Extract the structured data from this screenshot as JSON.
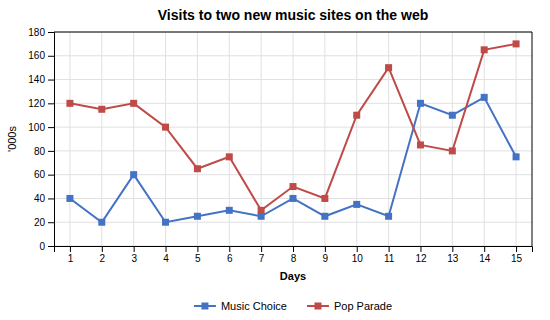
{
  "chart_data": {
    "type": "line",
    "title": "Visits to two new music sites on the web",
    "xlabel": "Days",
    "ylabel": "'000s",
    "x": [
      1,
      2,
      3,
      4,
      5,
      6,
      7,
      8,
      9,
      10,
      11,
      12,
      13,
      14,
      15
    ],
    "series": [
      {
        "name": "Music Choice",
        "color": "#4472C4",
        "marker": "square",
        "values": [
          40,
          20,
          60,
          20,
          25,
          30,
          25,
          40,
          25,
          35,
          25,
          120,
          110,
          125,
          75
        ]
      },
      {
        "name": "Pop Parade",
        "color": "#BE4B48",
        "marker": "square",
        "values": [
          120,
          115,
          120,
          100,
          65,
          75,
          30,
          50,
          40,
          110,
          150,
          85,
          80,
          165,
          170
        ]
      }
    ],
    "xlim": [
      0.5,
      15.5
    ],
    "xticks": [
      1,
      2,
      3,
      4,
      5,
      6,
      7,
      8,
      9,
      10,
      11,
      12,
      13,
      14,
      15
    ],
    "ylim": [
      0,
      180
    ],
    "yticks": [
      0,
      20,
      40,
      60,
      80,
      100,
      120,
      140,
      160,
      180
    ],
    "grid": true,
    "legend": "bottom"
  }
}
